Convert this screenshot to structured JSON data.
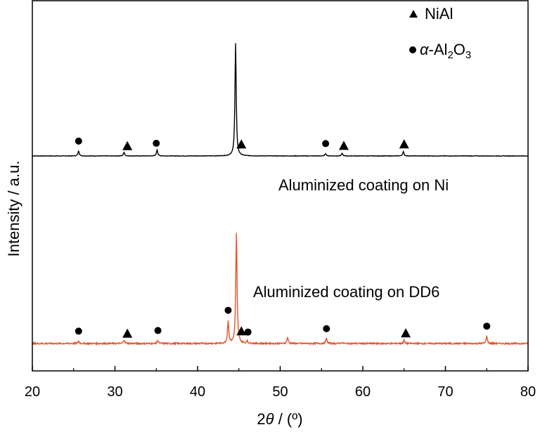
{
  "chart_data": {
    "type": "line",
    "xlabel_prefix": "2",
    "xlabel_theta": "θ",
    "xlabel_suffix": " / (º)",
    "ylabel": "Intensity / a.u.",
    "xlim": [
      20,
      80
    ],
    "xticks": [
      20,
      30,
      40,
      50,
      60,
      70,
      80
    ],
    "yticks_visible": false,
    "legend": {
      "placement": "top-right",
      "entries": [
        {
          "marker": "triangle",
          "label": "NiAl"
        },
        {
          "marker": "circle",
          "label_greek": "α",
          "label_main": "-Al",
          "label_sub1": "2",
          "label_mid": "O",
          "label_sub2": "3"
        }
      ]
    },
    "series": [
      {
        "name": "Aluminized coating on Ni",
        "color": "#000000",
        "offset": 1.0,
        "noise": 0.002,
        "peaks": [
          {
            "x": 25.6,
            "h": 0.04
          },
          {
            "x": 31.1,
            "h": 0.03
          },
          {
            "x": 35.1,
            "h": 0.05
          },
          {
            "x": 44.6,
            "h": 0.9
          },
          {
            "x": 55.5,
            "h": 0.02
          },
          {
            "x": 57.5,
            "h": 0.02
          },
          {
            "x": 64.9,
            "h": 0.035
          }
        ],
        "markers": [
          {
            "x": 25.6,
            "shape": "circle"
          },
          {
            "x": 31.5,
            "shape": "triangle"
          },
          {
            "x": 35.0,
            "shape": "circle"
          },
          {
            "x": 45.3,
            "shape": "triangle"
          },
          {
            "x": 55.5,
            "shape": "circle"
          },
          {
            "x": 57.7,
            "shape": "triangle"
          },
          {
            "x": 65.0,
            "shape": "triangle"
          }
        ]
      },
      {
        "name": "Aluminized coating on DD6",
        "color": "#e8502a",
        "offset": 0.0,
        "noise": 0.006,
        "peaks": [
          {
            "x": 25.6,
            "h": 0.02
          },
          {
            "x": 31.1,
            "h": 0.03
          },
          {
            "x": 35.2,
            "h": 0.025
          },
          {
            "x": 43.7,
            "h": 0.18
          },
          {
            "x": 44.7,
            "h": 0.88
          },
          {
            "x": 46.0,
            "h": 0.02
          },
          {
            "x": 50.9,
            "h": 0.05
          },
          {
            "x": 55.6,
            "h": 0.04
          },
          {
            "x": 57.4,
            "h": 0.01
          },
          {
            "x": 65.0,
            "h": 0.025
          },
          {
            "x": 75.0,
            "h": 0.06
          }
        ],
        "markers": [
          {
            "x": 25.6,
            "shape": "circle"
          },
          {
            "x": 31.5,
            "shape": "triangle"
          },
          {
            "x": 35.2,
            "shape": "circle"
          },
          {
            "x": 43.7,
            "shape": "circle"
          },
          {
            "x": 45.3,
            "shape": "triangle"
          },
          {
            "x": 46.1,
            "shape": "circle"
          },
          {
            "x": 55.6,
            "shape": "circle"
          },
          {
            "x": 65.2,
            "shape": "triangle"
          },
          {
            "x": 75.0,
            "shape": "circle"
          }
        ]
      }
    ]
  }
}
